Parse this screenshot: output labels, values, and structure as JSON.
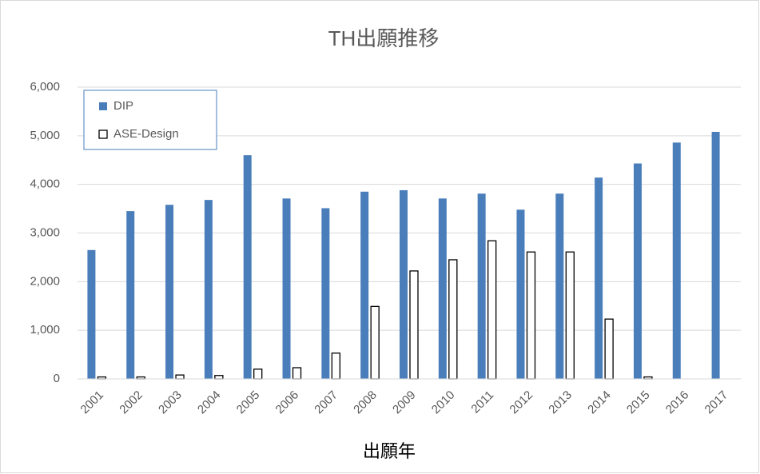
{
  "chart_data": {
    "type": "bar",
    "title": "TH出願推移",
    "x_label": "出願年",
    "categories": [
      "2001",
      "2002",
      "2003",
      "2004",
      "2005",
      "2006",
      "2007",
      "2008",
      "2009",
      "2010",
      "2011",
      "2012",
      "2013",
      "2014",
      "2015",
      "2016",
      "2017"
    ],
    "series": [
      {
        "name": "DIP",
        "color": "#4a7ebb",
        "values": [
          2650,
          3450,
          3580,
          3680,
          4600,
          3710,
          3510,
          3850,
          3880,
          3710,
          3810,
          3480,
          3810,
          4140,
          4430,
          4860,
          5080
        ]
      },
      {
        "name": "ASE-Design",
        "color": "#ffffff",
        "values": [
          40,
          40,
          80,
          70,
          200,
          230,
          530,
          1490,
          2220,
          2450,
          2840,
          2610,
          2610,
          1230,
          40,
          null,
          null
        ]
      }
    ],
    "ylim": [
      0,
      6000
    ],
    "yticks": [
      0,
      {
        "value": 1000,
        "label": "1,000"
      },
      {
        "value": 2000,
        "label": "2,000"
      },
      {
        "value": 3000,
        "label": "3,000"
      },
      {
        "value": 4000,
        "label": "4,000"
      },
      {
        "value": 5000,
        "label": "5,000"
      },
      {
        "value": 6000,
        "label": "6,000"
      }
    ],
    "grid": true,
    "legend": "top-left"
  }
}
